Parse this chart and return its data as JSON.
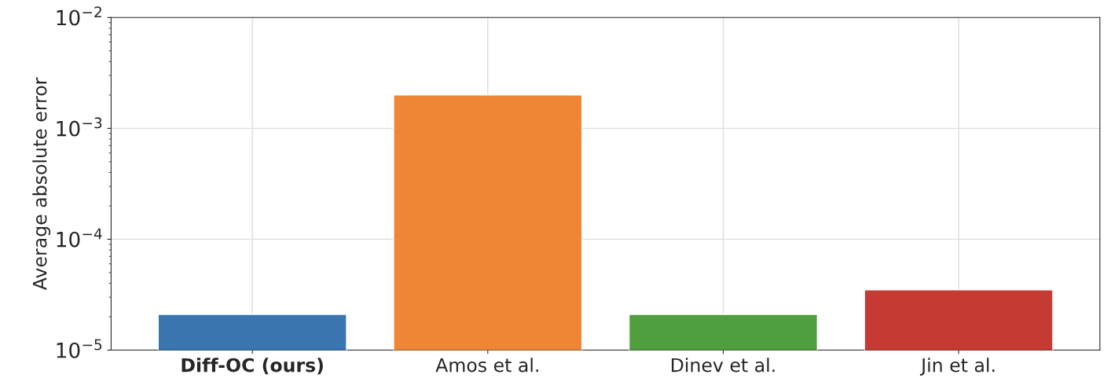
{
  "chart_data": {
    "type": "bar",
    "ylabel": "Average absolute error",
    "categories": [
      "Diff-OC (ours)",
      "Amos et al.",
      "Dinev et al.",
      "Jin et al."
    ],
    "values": [
      2.1e-05,
      0.002,
      2.1e-05,
      3.5e-05
    ],
    "colors": [
      "#3a75b0",
      "#ee8636",
      "#519e3e",
      "#c53a32"
    ],
    "log": true,
    "ylim": [
      1e-05,
      0.01
    ],
    "yticks": [
      {
        "value": 1e-05,
        "label": "10$^{−5}$"
      },
      {
        "value": 0.0001,
        "label": "10$^{−4}$"
      },
      {
        "value": 0.001,
        "label": "10$^{−3}$"
      },
      {
        "value": 0.01,
        "label": "10$^{−2}$"
      }
    ],
    "grid": true
  }
}
